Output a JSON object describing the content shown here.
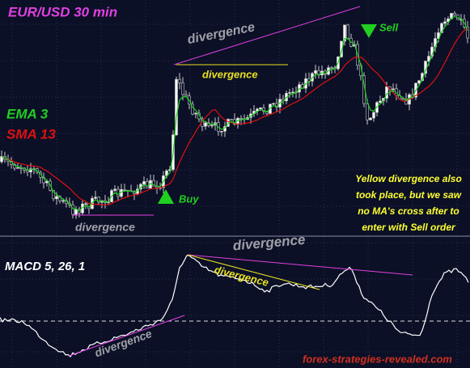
{
  "header": {
    "title": "EUR/USD  30 min"
  },
  "legend": {
    "ema": "EMA 3",
    "sma": "SMA 13"
  },
  "price_panel": {
    "divergence_top": "divergence",
    "divergence_yellow": "divergence",
    "divergence_bottom": "divergence",
    "buy": "Buy",
    "sell": "Sell",
    "note": [
      "Yellow divergence also",
      "took place, but we saw",
      "no MA's cross after to",
      "enter with Sell order"
    ]
  },
  "macd_panel": {
    "title": "MACD  5, 26, 1",
    "divergence_top": "divergence",
    "divergence_yellow": "divergence",
    "divergence_bottom": "divergence"
  },
  "footer": {
    "site": "forex-strategies-revealed.com"
  }
}
